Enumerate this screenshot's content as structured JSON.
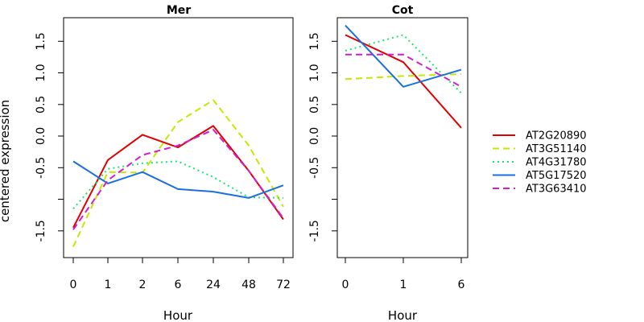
{
  "chart_data": [
    {
      "type": "line",
      "title": "Mer",
      "xlabel": "Hour",
      "ylabel": "centered expression",
      "categories": [
        "0",
        "1",
        "2",
        "6",
        "24",
        "48",
        "72"
      ],
      "ylim": [
        -1.9,
        1.9
      ],
      "yticks": [
        "-1.5",
        "-0.5",
        "0.0",
        "0.5",
        "1.0",
        "1.5"
      ],
      "series": [
        {
          "name": "AT2G20890",
          "color": "#e00000",
          "dash": "solid",
          "values": [
            -1.45,
            -0.38,
            0.02,
            -0.18,
            0.16,
            -0.55,
            -1.32
          ]
        },
        {
          "name": "AT3G51140",
          "color": "#c8e600",
          "dash": "dashed",
          "values": [
            -1.75,
            -0.57,
            -0.58,
            0.22,
            0.57,
            -0.15,
            -1.12
          ]
        },
        {
          "name": "AT4G31780",
          "color": "#1ee36e",
          "dash": "dotted",
          "values": [
            -1.15,
            -0.52,
            -0.43,
            -0.4,
            -0.65,
            -0.97,
            -0.98
          ]
        },
        {
          "name": "AT5G17520",
          "color": "#1a6fe0",
          "dash": "solid",
          "values": [
            -0.4,
            -0.75,
            -0.57,
            -0.84,
            -0.88,
            -0.98,
            -0.78
          ]
        },
        {
          "name": "AT3G63410",
          "color": "#d11ed1",
          "dash": "dashed",
          "values": [
            -1.48,
            -0.7,
            -0.3,
            -0.15,
            0.1,
            -0.55,
            -1.3
          ]
        }
      ]
    },
    {
      "type": "line",
      "title": "Cot",
      "xlabel": "Hour",
      "categories": [
        "0",
        "1",
        "6"
      ],
      "ylim": [
        -1.9,
        1.9
      ],
      "yticks": [
        "-1.5",
        "-0.5",
        "0.0",
        "0.5",
        "1.0",
        "1.5"
      ],
      "series": [
        {
          "name": "AT2G20890",
          "color": "#e00000",
          "dash": "solid",
          "values": [
            1.6,
            1.17,
            0.13
          ]
        },
        {
          "name": "AT3G51140",
          "color": "#c8e600",
          "dash": "dashed",
          "values": [
            0.9,
            0.95,
            0.98
          ]
        },
        {
          "name": "AT4G31780",
          "color": "#1ee36e",
          "dash": "dotted",
          "values": [
            1.35,
            1.6,
            0.68
          ]
        },
        {
          "name": "AT5G17520",
          "color": "#1a6fe0",
          "dash": "solid",
          "values": [
            1.75,
            0.78,
            1.05
          ]
        },
        {
          "name": "AT3G63410",
          "color": "#d11ed1",
          "dash": "dashed",
          "values": [
            1.29,
            1.29,
            0.78
          ]
        }
      ]
    }
  ],
  "legend": {
    "placement": "right",
    "items": [
      {
        "label": "AT2G20890",
        "color": "#e00000",
        "dash": "solid"
      },
      {
        "label": "AT3G51140",
        "color": "#c8e600",
        "dash": "dashed"
      },
      {
        "label": "AT4G31780",
        "color": "#1ee36e",
        "dash": "dotted"
      },
      {
        "label": "AT5G17520",
        "color": "#1a6fe0",
        "dash": "solid"
      },
      {
        "label": "AT3G63410",
        "color": "#d11ed1",
        "dash": "dashed"
      }
    ]
  }
}
